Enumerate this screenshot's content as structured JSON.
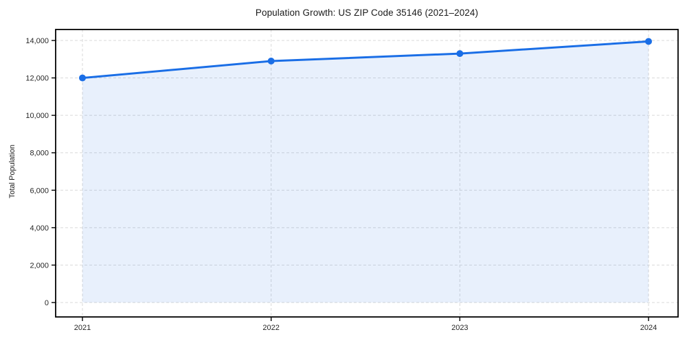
{
  "chart_data": {
    "type": "line",
    "title": "Population Growth: US ZIP Code 35146 (2021–2024)",
    "xlabel": "",
    "ylabel": "Total Population",
    "categories": [
      "2021",
      "2022",
      "2023",
      "2024"
    ],
    "series": [
      {
        "name": "Total Population",
        "values": [
          12000,
          12900,
          13300,
          13950
        ]
      }
    ],
    "ylim": [
      0,
      14000
    ],
    "y_ticks": [
      0,
      2000,
      4000,
      6000,
      8000,
      10000,
      12000,
      14000
    ],
    "y_tick_labels": [
      "0",
      "2,000",
      "4,000",
      "6,000",
      "8,000",
      "10,000",
      "12,000",
      "14,000"
    ],
    "grid": "dashed-both-axes",
    "legend": "none",
    "marker_style": "circle",
    "area_fill_under_line": true,
    "colors": {
      "line": "#1a6ee6",
      "marker": "#1a6ee6",
      "area_fill": "rgba(26,110,230,0.10)",
      "gridline": "#d9d9d9",
      "spine": "#000000",
      "tick": "#000000",
      "background": "#ffffff",
      "title_text": "#1a1a1a",
      "tick_label_text": "#262626"
    }
  }
}
